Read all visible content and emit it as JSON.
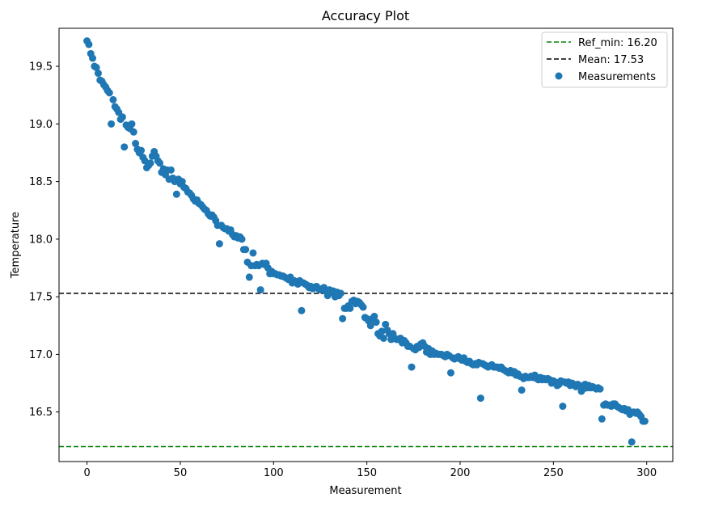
{
  "chart_data": {
    "type": "scatter",
    "title": "Accuracy Plot",
    "xlabel": "Measurement",
    "ylabel": "Temperature",
    "xlim": [
      -15,
      314
    ],
    "ylim": [
      16.07,
      19.83
    ],
    "x_ticks": [
      0,
      50,
      100,
      150,
      200,
      250,
      300
    ],
    "x_tick_labels": [
      "0",
      "50",
      "100",
      "150",
      "200",
      "250",
      "300"
    ],
    "y_ticks": [
      16.5,
      17.0,
      17.5,
      18.0,
      18.5,
      19.0,
      19.5
    ],
    "y_tick_labels": [
      "16.5",
      "17.0",
      "17.5",
      "18.0",
      "18.5",
      "19.0",
      "19.5"
    ],
    "grid": false,
    "legend_position": "top-right",
    "reference_lines": [
      {
        "label": "Ref_min: 16.20",
        "y": 16.2,
        "color": "#008000",
        "style": "dashed"
      },
      {
        "label": "Mean: 17.53",
        "y": 17.53,
        "color": "#000000",
        "style": "dashed"
      }
    ],
    "series": [
      {
        "name": "Measurements",
        "color": "#1f77b4",
        "points": [
          [
            0,
            19.72
          ],
          [
            1,
            19.69
          ],
          [
            2,
            19.61
          ],
          [
            3,
            19.57
          ],
          [
            4,
            19.5
          ],
          [
            5,
            19.49
          ],
          [
            6,
            19.44
          ],
          [
            7,
            19.38
          ],
          [
            8,
            19.37
          ],
          [
            9,
            19.34
          ],
          [
            10,
            19.32
          ],
          [
            11,
            19.29
          ],
          [
            12,
            19.27
          ],
          [
            13,
            19.0
          ],
          [
            14,
            19.21
          ],
          [
            15,
            19.15
          ],
          [
            16,
            19.13
          ],
          [
            17,
            19.1
          ],
          [
            18,
            19.04
          ],
          [
            19,
            19.06
          ],
          [
            20,
            18.8
          ],
          [
            21,
            18.99
          ],
          [
            22,
            18.97
          ],
          [
            23,
            18.96
          ],
          [
            24,
            19.0
          ],
          [
            25,
            18.93
          ],
          [
            26,
            18.83
          ],
          [
            27,
            18.78
          ],
          [
            28,
            18.75
          ],
          [
            29,
            18.77
          ],
          [
            30,
            18.71
          ],
          [
            31,
            18.68
          ],
          [
            32,
            18.62
          ],
          [
            33,
            18.64
          ],
          [
            34,
            18.66
          ],
          [
            35,
            18.72
          ],
          [
            36,
            18.76
          ],
          [
            37,
            18.72
          ],
          [
            38,
            18.68
          ],
          [
            39,
            18.66
          ],
          [
            40,
            18.58
          ],
          [
            41,
            18.61
          ],
          [
            42,
            18.56
          ],
          [
            43,
            18.6
          ],
          [
            44,
            18.52
          ],
          [
            45,
            18.6
          ],
          [
            46,
            18.53
          ],
          [
            47,
            18.5
          ],
          [
            48,
            18.39
          ],
          [
            49,
            18.52
          ],
          [
            50,
            18.48
          ],
          [
            51,
            18.5
          ],
          [
            52,
            18.45
          ],
          [
            53,
            18.44
          ],
          [
            54,
            18.41
          ],
          [
            55,
            18.4
          ],
          [
            56,
            18.38
          ],
          [
            57,
            18.35
          ],
          [
            58,
            18.33
          ],
          [
            59,
            18.34
          ],
          [
            60,
            18.31
          ],
          [
            61,
            18.3
          ],
          [
            62,
            18.28
          ],
          [
            63,
            18.26
          ],
          [
            64,
            18.25
          ],
          [
            65,
            18.22
          ],
          [
            66,
            18.2
          ],
          [
            67,
            18.21
          ],
          [
            68,
            18.19
          ],
          [
            69,
            18.16
          ],
          [
            70,
            18.12
          ],
          [
            71,
            17.96
          ],
          [
            72,
            18.12
          ],
          [
            73,
            18.1
          ],
          [
            74,
            18.09
          ],
          [
            75,
            18.09
          ],
          [
            76,
            18.07
          ],
          [
            77,
            18.08
          ],
          [
            78,
            18.04
          ],
          [
            79,
            18.02
          ],
          [
            80,
            18.03
          ],
          [
            81,
            18.01
          ],
          [
            82,
            18.02
          ],
          [
            83,
            18.0
          ],
          [
            84,
            17.91
          ],
          [
            85,
            17.91
          ],
          [
            86,
            17.8
          ],
          [
            87,
            17.67
          ],
          [
            88,
            17.77
          ],
          [
            89,
            17.88
          ],
          [
            90,
            17.77
          ],
          [
            91,
            17.78
          ],
          [
            92,
            17.77
          ],
          [
            93,
            17.56
          ],
          [
            94,
            17.79
          ],
          [
            95,
            17.78
          ],
          [
            96,
            17.79
          ],
          [
            97,
            17.75
          ],
          [
            98,
            17.7
          ],
          [
            99,
            17.72
          ],
          [
            100,
            17.7
          ],
          [
            101,
            17.7
          ],
          [
            102,
            17.69
          ],
          [
            103,
            17.69
          ],
          [
            104,
            17.68
          ],
          [
            105,
            17.68
          ],
          [
            106,
            17.67
          ],
          [
            107,
            17.66
          ],
          [
            108,
            17.65
          ],
          [
            109,
            17.67
          ],
          [
            110,
            17.62
          ],
          [
            111,
            17.64
          ],
          [
            112,
            17.63
          ],
          [
            113,
            17.61
          ],
          [
            114,
            17.64
          ],
          [
            115,
            17.38
          ],
          [
            116,
            17.62
          ],
          [
            117,
            17.61
          ],
          [
            118,
            17.6
          ],
          [
            119,
            17.58
          ],
          [
            120,
            17.59
          ],
          [
            121,
            17.57
          ],
          [
            122,
            17.58
          ],
          [
            123,
            17.59
          ],
          [
            124,
            17.57
          ],
          [
            125,
            17.56
          ],
          [
            126,
            17.57
          ],
          [
            127,
            17.58
          ],
          [
            128,
            17.55
          ],
          [
            129,
            17.51
          ],
          [
            130,
            17.56
          ],
          [
            131,
            17.54
          ],
          [
            132,
            17.55
          ],
          [
            133,
            17.5
          ],
          [
            134,
            17.54
          ],
          [
            135,
            17.51
          ],
          [
            136,
            17.53
          ],
          [
            137,
            17.31
          ],
          [
            138,
            17.4
          ],
          [
            139,
            17.4
          ],
          [
            140,
            17.42
          ],
          [
            141,
            17.4
          ],
          [
            142,
            17.46
          ],
          [
            143,
            17.47
          ],
          [
            144,
            17.44
          ],
          [
            145,
            17.46
          ],
          [
            146,
            17.45
          ],
          [
            147,
            17.43
          ],
          [
            148,
            17.41
          ],
          [
            149,
            17.32
          ],
          [
            150,
            17.31
          ],
          [
            151,
            17.29
          ],
          [
            152,
            17.25
          ],
          [
            153,
            17.31
          ],
          [
            154,
            17.33
          ],
          [
            155,
            17.28
          ],
          [
            156,
            17.18
          ],
          [
            157,
            17.16
          ],
          [
            158,
            17.2
          ],
          [
            159,
            17.14
          ],
          [
            160,
            17.26
          ],
          [
            161,
            17.21
          ],
          [
            162,
            17.18
          ],
          [
            163,
            17.13
          ],
          [
            164,
            17.18
          ],
          [
            165,
            17.14
          ],
          [
            166,
            17.13
          ],
          [
            167,
            17.13
          ],
          [
            168,
            17.14
          ],
          [
            169,
            17.1
          ],
          [
            170,
            17.12
          ],
          [
            171,
            17.1
          ],
          [
            172,
            17.07
          ],
          [
            173,
            17.07
          ],
          [
            174,
            16.89
          ],
          [
            175,
            17.05
          ],
          [
            176,
            17.04
          ],
          [
            177,
            17.07
          ],
          [
            178,
            17.06
          ],
          [
            179,
            17.09
          ],
          [
            180,
            17.1
          ],
          [
            181,
            17.07
          ],
          [
            182,
            17.02
          ],
          [
            183,
            17.05
          ],
          [
            184,
            17.0
          ],
          [
            185,
            17.03
          ],
          [
            186,
            17.0
          ],
          [
            187,
            17.01
          ],
          [
            188,
            17.0
          ],
          [
            189,
            17.0
          ],
          [
            190,
            17.0
          ],
          [
            191,
            16.99
          ],
          [
            192,
            16.98
          ],
          [
            193,
            17.0
          ],
          [
            194,
            16.99
          ],
          [
            195,
            16.84
          ],
          [
            196,
            16.97
          ],
          [
            197,
            16.96
          ],
          [
            198,
            16.97
          ],
          [
            199,
            16.98
          ],
          [
            200,
            16.96
          ],
          [
            201,
            16.95
          ],
          [
            202,
            16.97
          ],
          [
            203,
            16.94
          ],
          [
            204,
            16.93
          ],
          [
            205,
            16.94
          ],
          [
            206,
            16.92
          ],
          [
            207,
            16.91
          ],
          [
            208,
            16.92
          ],
          [
            209,
            16.91
          ],
          [
            210,
            16.93
          ],
          [
            211,
            16.62
          ],
          [
            212,
            16.92
          ],
          [
            213,
            16.91
          ],
          [
            214,
            16.9
          ],
          [
            215,
            16.89
          ],
          [
            216,
            16.9
          ],
          [
            217,
            16.91
          ],
          [
            218,
            16.89
          ],
          [
            219,
            16.89
          ],
          [
            220,
            16.89
          ],
          [
            221,
            16.88
          ],
          [
            222,
            16.89
          ],
          [
            223,
            16.87
          ],
          [
            224,
            16.86
          ],
          [
            225,
            16.85
          ],
          [
            226,
            16.84
          ],
          [
            227,
            16.86
          ],
          [
            228,
            16.84
          ],
          [
            229,
            16.85
          ],
          [
            230,
            16.82
          ],
          [
            231,
            16.83
          ],
          [
            232,
            16.81
          ],
          [
            233,
            16.69
          ],
          [
            234,
            16.79
          ],
          [
            235,
            16.81
          ],
          [
            236,
            16.8
          ],
          [
            237,
            16.8
          ],
          [
            238,
            16.81
          ],
          [
            239,
            16.8
          ],
          [
            240,
            16.82
          ],
          [
            241,
            16.79
          ],
          [
            242,
            16.78
          ],
          [
            243,
            16.8
          ],
          [
            244,
            16.78
          ],
          [
            245,
            16.79
          ],
          [
            246,
            16.78
          ],
          [
            247,
            16.79
          ],
          [
            248,
            16.78
          ],
          [
            249,
            16.75
          ],
          [
            250,
            16.77
          ],
          [
            251,
            16.76
          ],
          [
            252,
            16.73
          ],
          [
            253,
            16.74
          ],
          [
            254,
            16.77
          ],
          [
            255,
            16.55
          ],
          [
            256,
            16.76
          ],
          [
            257,
            16.75
          ],
          [
            258,
            16.76
          ],
          [
            259,
            16.73
          ],
          [
            260,
            16.75
          ],
          [
            261,
            16.74
          ],
          [
            262,
            16.72
          ],
          [
            263,
            16.74
          ],
          [
            264,
            16.73
          ],
          [
            265,
            16.68
          ],
          [
            266,
            16.7
          ],
          [
            267,
            16.74
          ],
          [
            268,
            16.71
          ],
          [
            269,
            16.73
          ],
          [
            270,
            16.71
          ],
          [
            271,
            16.72
          ],
          [
            272,
            16.71
          ],
          [
            273,
            16.7
          ],
          [
            274,
            16.71
          ],
          [
            275,
            16.7
          ],
          [
            276,
            16.44
          ],
          [
            277,
            16.56
          ],
          [
            278,
            16.57
          ],
          [
            279,
            16.56
          ],
          [
            280,
            16.56
          ],
          [
            281,
            16.55
          ],
          [
            282,
            16.57
          ],
          [
            283,
            16.57
          ],
          [
            284,
            16.55
          ],
          [
            285,
            16.54
          ],
          [
            286,
            16.53
          ],
          [
            287,
            16.52
          ],
          [
            288,
            16.53
          ],
          [
            289,
            16.51
          ],
          [
            290,
            16.52
          ],
          [
            291,
            16.48
          ],
          [
            292,
            16.24
          ],
          [
            293,
            16.5
          ],
          [
            294,
            16.49
          ],
          [
            295,
            16.5
          ],
          [
            296,
            16.48
          ],
          [
            297,
            16.46
          ],
          [
            298,
            16.42
          ],
          [
            299,
            16.42
          ]
        ]
      }
    ]
  }
}
